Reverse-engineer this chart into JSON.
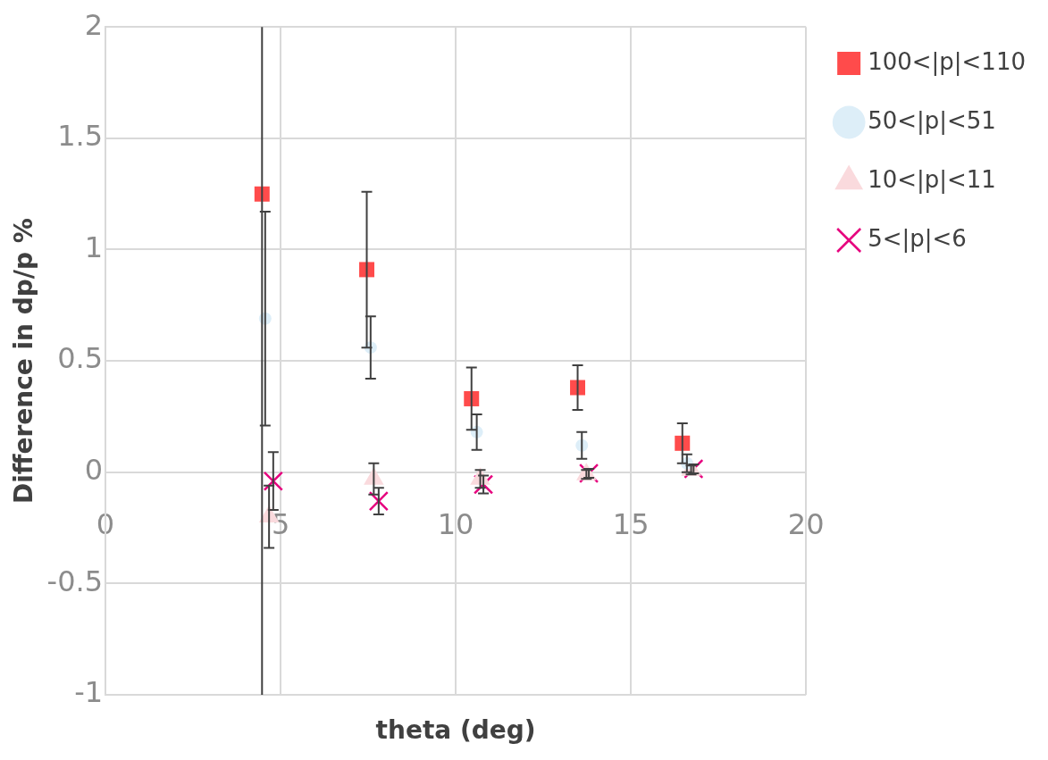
{
  "chart_data": {
    "type": "scatter",
    "xlabel": "theta (deg)",
    "ylabel": "Difference in dp/p %",
    "xlim": [
      0,
      20
    ],
    "xticks": [
      0,
      5,
      10,
      15,
      20
    ],
    "ylim": [
      -1,
      2
    ],
    "yticks": [
      -1,
      -0.5,
      0,
      0.5,
      1,
      1.5,
      2
    ],
    "grid": true,
    "legend": "top right",
    "series": [
      {
        "name": "100<|p|<110",
        "color": "#ff4b4b",
        "marker": "square",
        "x": [
          4.47,
          7.46,
          10.45,
          13.48,
          16.47
        ],
        "values": [
          1.25,
          0.91,
          0.33,
          0.38,
          0.13
        ],
        "errors": [
          [
            -1,
            2
          ],
          0.35,
          0.14,
          0.1,
          0.09
        ]
      },
      {
        "name": "50<|p|<51",
        "color": "#ddeef8",
        "marker": "circle",
        "x": [
          4.56,
          7.57,
          10.6,
          13.6,
          16.6
        ],
        "values": [
          0.69,
          0.56,
          0.18,
          0.12,
          0.04
        ],
        "errors": [
          0.48,
          0.14,
          0.08,
          0.06,
          0.04
        ]
      },
      {
        "name": "10<|p|<11",
        "color": "#fadadd",
        "marker": "triangle",
        "x": [
          4.67,
          7.66,
          10.7,
          13.73,
          16.72
        ],
        "values": [
          -0.2,
          -0.03,
          -0.03,
          -0.01,
          0.01
        ],
        "errors": [
          0.14,
          0.07,
          0.04,
          0.02,
          0.02
        ]
      },
      {
        "name": "5<|p|<6",
        "color": "#e6007e",
        "marker": "cross",
        "x": [
          4.79,
          7.8,
          10.79,
          13.8,
          16.79
        ],
        "values": [
          -0.04,
          -0.13,
          -0.055,
          -0.005,
          0.015
        ],
        "errors": [
          0.13,
          0.06,
          0.04,
          0.02,
          0.02
        ]
      }
    ]
  }
}
